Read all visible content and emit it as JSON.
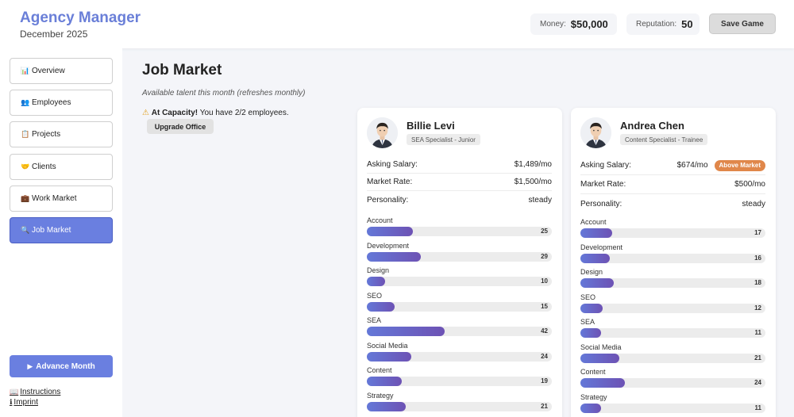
{
  "header": {
    "title": "Agency Manager",
    "date": "December 2025",
    "money_label": "Money:",
    "money_value": "$50,000",
    "reputation_label": "Reputation:",
    "reputation_value": "50",
    "save_label": "Save Game"
  },
  "sidebar": {
    "items": [
      {
        "icon": "📊",
        "icon_name": "chart-icon",
        "label": "Overview",
        "active": false
      },
      {
        "icon": "👥",
        "icon_name": "people-icon",
        "label": "Employees",
        "active": false
      },
      {
        "icon": "📋",
        "icon_name": "clipboard-icon",
        "label": "Projects",
        "active": false
      },
      {
        "icon": "🤝",
        "icon_name": "handshake-icon",
        "label": "Clients",
        "active": false
      },
      {
        "icon": "💼",
        "icon_name": "briefcase-icon",
        "label": "Work Market",
        "active": false
      },
      {
        "icon": "🔍",
        "icon_name": "magnifier-icon",
        "label": "Job Market",
        "active": true
      }
    ],
    "advance_icon": "▶",
    "advance_label": "Advance Month",
    "instructions_icon": "📖",
    "instructions_label": "Instructions",
    "imprint_icon": "ℹ",
    "imprint_label": "Imprint"
  },
  "main": {
    "title": "Job Market",
    "subtitle": "Available talent this month (refreshes monthly)",
    "capacity_icon": "⚠",
    "capacity_strong": "At Capacity!",
    "capacity_text": " You have 2/2 employees.",
    "upgrade_label": "Upgrade Office"
  },
  "labels": {
    "asking_salary": "Asking Salary:",
    "market_rate": "Market Rate:",
    "personality": "Personality:"
  },
  "skill_max": 100,
  "candidates": [
    {
      "name": "Billie Levi",
      "role": "SEA Specialist - Junior",
      "asking_salary": "$1,489/mo",
      "market_badge": "",
      "market_rate": "$1,500/mo",
      "personality": "steady",
      "skills": [
        {
          "label": "Account",
          "value": 25
        },
        {
          "label": "Development",
          "value": 29
        },
        {
          "label": "Design",
          "value": 10
        },
        {
          "label": "SEO",
          "value": 15
        },
        {
          "label": "SEA",
          "value": 42
        },
        {
          "label": "Social Media",
          "value": 24
        },
        {
          "label": "Content",
          "value": 19
        },
        {
          "label": "Strategy",
          "value": 21
        }
      ]
    },
    {
      "name": "Andrea Chen",
      "role": "Content Specialist - Trainee",
      "asking_salary": "$674/mo",
      "market_badge": "Above Market",
      "market_rate": "$500/mo",
      "personality": "steady",
      "skills": [
        {
          "label": "Account",
          "value": 17
        },
        {
          "label": "Development",
          "value": 16
        },
        {
          "label": "Design",
          "value": 18
        },
        {
          "label": "SEO",
          "value": 12
        },
        {
          "label": "SEA",
          "value": 11
        },
        {
          "label": "Social Media",
          "value": 21
        },
        {
          "label": "Content",
          "value": 24
        },
        {
          "label": "Strategy",
          "value": 11
        }
      ]
    }
  ],
  "colors": {
    "accent": "#6a7fe0",
    "title": "#6a7fd8",
    "badge_orange": "#e0874a"
  }
}
